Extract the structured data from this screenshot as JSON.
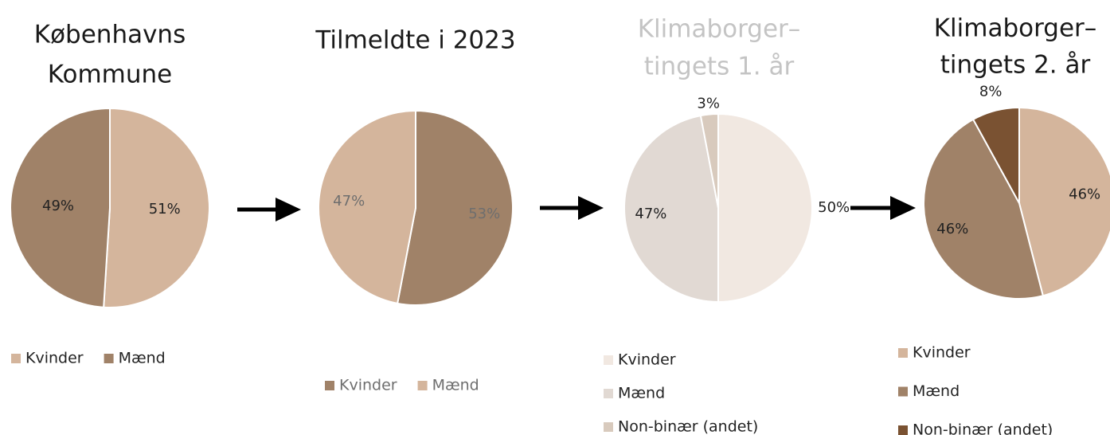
{
  "chart_data": [
    {
      "type": "pie",
      "title": [
        "Københavns",
        "Kommune"
      ],
      "title_color": "#1a1a1a",
      "categories": [
        "Kvinder",
        "Mænd"
      ],
      "values": [
        51,
        49
      ],
      "value_labels": [
        "51%",
        "49%"
      ],
      "colors": [
        "#d4b59c",
        "#a08268"
      ],
      "label_color": "#222222",
      "legend": "horizontal",
      "legend_color": "#222222"
    },
    {
      "type": "pie",
      "title": [
        "Tilmeldte i 2023"
      ],
      "title_color": "#1a1a1a",
      "categories": [
        "Kvinder",
        "Mænd"
      ],
      "values": [
        53,
        47
      ],
      "value_labels": [
        "53%",
        "47%"
      ],
      "colors": [
        "#a08268",
        "#d4b59c"
      ],
      "label_color": "#6e6e6e",
      "legend": "horizontal",
      "legend_color": "#6e6e6e"
    },
    {
      "type": "pie",
      "title": [
        "Klimaborger–",
        "tingets 1. år"
      ],
      "title_color": "#c4c4c4",
      "categories": [
        "Kvinder",
        "Mænd",
        "Non-binær (andet)"
      ],
      "values": [
        50,
        47,
        3
      ],
      "value_labels": [
        "50%",
        "47%",
        "3%"
      ],
      "colors": [
        "#f1e8e1",
        "#e1d9d3",
        "#d8cabd"
      ],
      "label_color": "#222222",
      "legend": "vertical",
      "legend_color": "#222222"
    },
    {
      "type": "pie",
      "title": [
        "Klimaborger–",
        "tingets 2. år"
      ],
      "title_color": "#1a1a1a",
      "categories": [
        "Kvinder",
        "Mænd",
        "Non-binær (andet)"
      ],
      "values": [
        46,
        46,
        8
      ],
      "value_labels": [
        "46%",
        "46%",
        "8%"
      ],
      "colors": [
        "#d4b59c",
        "#a08268",
        "#7a5232"
      ],
      "label_color": "#222222",
      "legend": "vertical",
      "legend_color": "#222222"
    }
  ]
}
